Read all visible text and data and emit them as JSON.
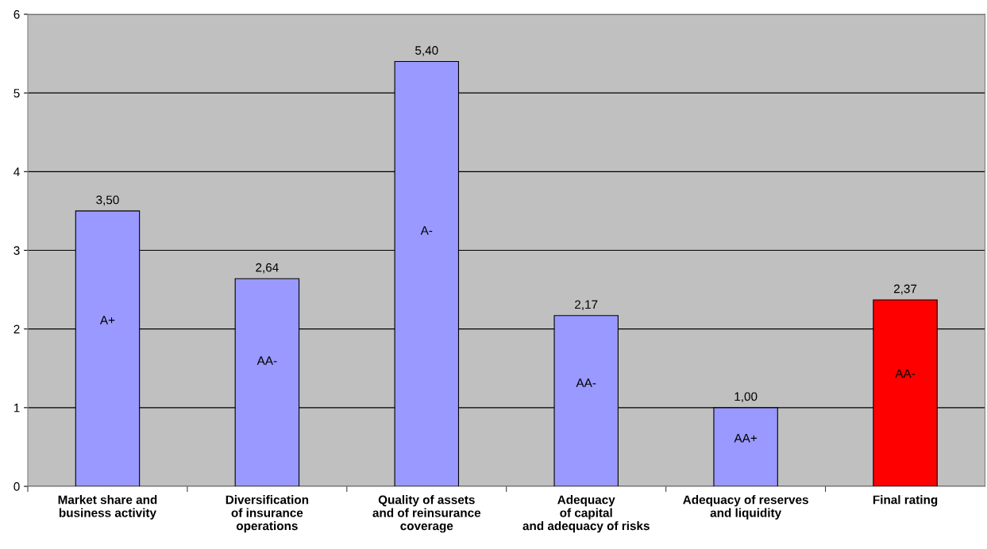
{
  "chart_data": {
    "type": "bar",
    "categories": [
      "Market share and\nbusiness activity",
      "Diversification\nof insurance\noperations",
      "Quality of assets\nand of reinsurance\ncoverage",
      "Adequacy\nof capital\nand adequacy of risks",
      "Adequacy of reserves\nand liquidity",
      "Final rating"
    ],
    "values": [
      3.5,
      2.64,
      5.4,
      2.17,
      1.0,
      2.37
    ],
    "value_labels": [
      "3,50",
      "2,64",
      "5,40",
      "2,17",
      "1,00",
      "2,37"
    ],
    "colors": [
      "#9999ff",
      "#9999ff",
      "#9999ff",
      "#9999ff",
      "#9999ff",
      "#ff0000"
    ],
    "annotations": [
      "A+",
      "AA-",
      "A-",
      "AA-",
      "AA+",
      "AA-"
    ],
    "ylim": [
      0,
      6
    ],
    "yticks": [
      0,
      1,
      2,
      3,
      4,
      5,
      6
    ],
    "grid": "y",
    "legend": false
  }
}
